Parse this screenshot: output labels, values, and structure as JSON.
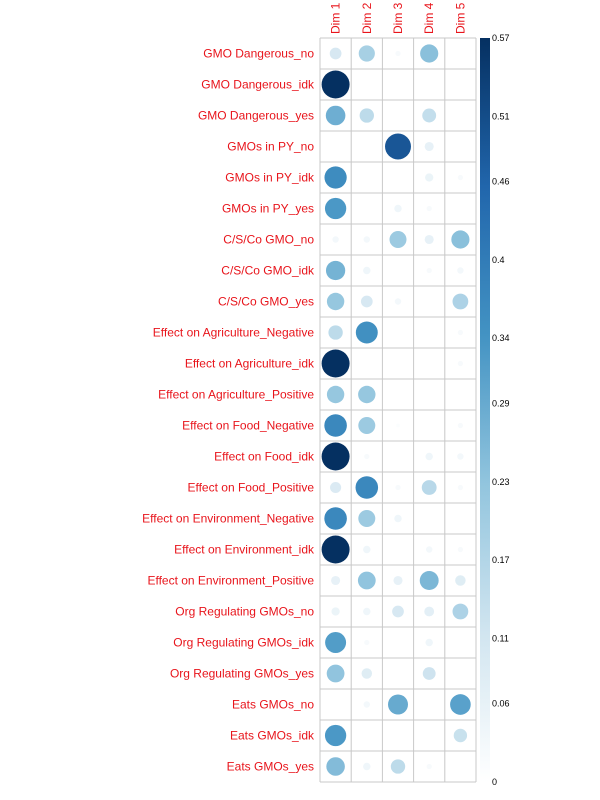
{
  "chart_data": {
    "type": "heatmap",
    "columns": [
      "Dim 1",
      "Dim 2",
      "Dim 3",
      "Dim 4",
      "Dim 5"
    ],
    "rows": [
      "GMO Dangerous_no",
      "GMO Dangerous_idk",
      "GMO Dangerous_yes",
      "GMOs in PY_no",
      "GMOs in PY_idk",
      "GMOs in PY_yes",
      "C/S/Co GMO_no",
      "C/S/Co GMO_idk",
      "C/S/Co GMO_yes",
      "Effect on Agriculture_Negative",
      "Effect on Agriculture_idk",
      "Effect on Agriculture_Positive",
      "Effect on Food_Negative",
      "Effect on Food_idk",
      "Effect on Food_Positive",
      "Effect on Environment_Negative",
      "Effect on Environment_idk",
      "Effect on Environment_Positive",
      "Org Regulating GMOs_no",
      "Org Regulating GMOs_idk",
      "Org Regulating GMOs_yes",
      "Eats GMOs_no",
      "Eats GMOs_idk",
      "Eats GMOs_yes"
    ],
    "values": [
      [
        0.1,
        0.19,
        0.02,
        0.24,
        0.0
      ],
      [
        0.57,
        0.0,
        0.0,
        0.0,
        0.0
      ],
      [
        0.28,
        0.15,
        0.0,
        0.14,
        0.0
      ],
      [
        0.0,
        0.0,
        0.49,
        0.06,
        0.0
      ],
      [
        0.36,
        0.0,
        0.0,
        0.05,
        0.02
      ],
      [
        0.33,
        0.0,
        0.04,
        0.02,
        0.0
      ],
      [
        0.03,
        0.03,
        0.21,
        0.06,
        0.24
      ],
      [
        0.27,
        0.04,
        0.0,
        0.02,
        0.03
      ],
      [
        0.22,
        0.1,
        0.03,
        0.0,
        0.18
      ],
      [
        0.15,
        0.35,
        0.0,
        0.0,
        0.02
      ],
      [
        0.57,
        0.0,
        0.0,
        0.0,
        0.02
      ],
      [
        0.22,
        0.22,
        0.0,
        0.0,
        0.0
      ],
      [
        0.37,
        0.21,
        0.01,
        0.0,
        0.02
      ],
      [
        0.57,
        0.02,
        0.0,
        0.04,
        0.03
      ],
      [
        0.09,
        0.37,
        0.02,
        0.16,
        0.02
      ],
      [
        0.37,
        0.21,
        0.04,
        0.0,
        0.0
      ],
      [
        0.57,
        0.04,
        0.0,
        0.03,
        0.02
      ],
      [
        0.06,
        0.23,
        0.06,
        0.26,
        0.08
      ],
      [
        0.05,
        0.04,
        0.1,
        0.07,
        0.18
      ],
      [
        0.32,
        0.02,
        0.0,
        0.04,
        0.0
      ],
      [
        0.23,
        0.08,
        0.0,
        0.12,
        0.0
      ],
      [
        0.0,
        0.03,
        0.29,
        0.0,
        0.31
      ],
      [
        0.33,
        0.0,
        0.0,
        0.0,
        0.13
      ],
      [
        0.25,
        0.04,
        0.15,
        0.02,
        0.0
      ]
    ],
    "scale": {
      "min": 0,
      "max": 0.57,
      "ticks": [
        "0",
        "0.06",
        "0.11",
        "0.17",
        "0.23",
        "0.29",
        "0.34",
        "0.4",
        "0.46",
        "0.51",
        "0.57"
      ],
      "tick_values": [
        0,
        0.06,
        0.11,
        0.17,
        0.23,
        0.29,
        0.34,
        0.4,
        0.46,
        0.51,
        0.57
      ],
      "colors": [
        "#ffffff",
        "#d1e5f0",
        "#92c5de",
        "#4393c3",
        "#2166ac",
        "#053061"
      ]
    },
    "grid": true,
    "legend_placement": "right",
    "label_color": "#e8141b"
  }
}
